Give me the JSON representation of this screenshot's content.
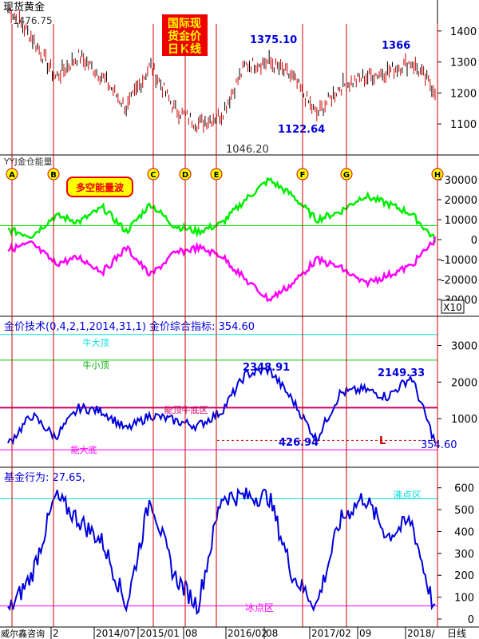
{
  "panel1": {
    "title": "现货黄金",
    "badge": [
      "国际现",
      "货金价",
      "日Ｋ线"
    ],
    "price_labels": {
      "high": "1476.75",
      "p2016": "1375.10",
      "p2018": "1366",
      "low1": "1122.64",
      "low2": "1046.20"
    }
  },
  "panel2": {
    "title": "YYJ金仓能量",
    "badge": "多空能量波",
    "markers": [
      "A",
      "B",
      "C",
      "D",
      "E",
      "F",
      "G",
      "H"
    ],
    "multiplier": "X10"
  },
  "panel3": {
    "title": "金价技术(0,4,2,1,2014,31,1) 金价综合指标: 354.60",
    "zones": {
      "top_big": "牛大顶",
      "top_small": "牛小顶",
      "energy": "能顶牛底区",
      "bottom_big": "能大底"
    },
    "labels": {
      "peak1": "2348.91",
      "peak2": "2149.33",
      "low": "426.94",
      "L": "L",
      "current": "354.60"
    }
  },
  "panel4": {
    "title": "基金行为: 27.65,",
    "zones": {
      "boil": "沸点区",
      "freeze": "冰点区"
    }
  },
  "footer": {
    "source": "威尔鑫咨询",
    "dates": [
      "2",
      "2014/07",
      "2015/01",
      "08",
      "2016/02",
      "08",
      "2017/02",
      "09",
      "2018/",
      "日线"
    ]
  },
  "colors": {
    "candle_up": "#cc0000",
    "candle_down": "#000000",
    "positive_energy": "#00ee00",
    "negative_energy": "#ff00ff",
    "indicator": "#0000dd",
    "threshold": "#cc0000",
    "badge_red": "#ee0000",
    "badge_yellow": "#ffff00",
    "badge_text": "#0000cc",
    "cyan_line": "#00dddd"
  },
  "chart_data": [
    {
      "type": "candlestick",
      "title": "现货黄金",
      "ylim": [
        1000,
        1500
      ],
      "yticks": [
        1100,
        1200,
        1300,
        1400
      ],
      "x": [
        2013.75,
        2014.0,
        2014.25,
        2014.5,
        2014.75,
        2015.0,
        2015.25,
        2015.5,
        2015.75,
        2016.0,
        2016.25,
        2016.5,
        2016.75,
        2017.0,
        2017.25,
        2017.5,
        2017.75,
        2018.0,
        2018.25
      ],
      "close": [
        1476,
        1380,
        1250,
        1320,
        1250,
        1150,
        1290,
        1150,
        1100,
        1130,
        1290,
        1300,
        1250,
        1130,
        1220,
        1250,
        1270,
        1300,
        1210
      ],
      "annotations": [
        "1476.75",
        "1375.10",
        "1366",
        "1122.64",
        "1046.20"
      ]
    },
    {
      "type": "line",
      "title": "YYJ金仓能量",
      "ylim": [
        -35000,
        35000
      ],
      "yticks": [
        -30000,
        -20000,
        -10000,
        0,
        10000,
        20000,
        30000
      ],
      "series": [
        {
          "values": [
            5000,
            2000,
            12000,
            9000,
            16000,
            4000,
            18000,
            7000,
            4000,
            8000,
            20000,
            30000,
            22000,
            10000,
            14000,
            22000,
            18000,
            13000,
            0
          ]
        },
        {
          "values": [
            -5000,
            -2000,
            -12000,
            -9000,
            -16000,
            -4000,
            -18000,
            -7000,
            -4000,
            -8000,
            -20000,
            -30000,
            -22000,
            -10000,
            -14000,
            -22000,
            -18000,
            -13000,
            0
          ]
        }
      ]
    },
    {
      "type": "line",
      "title": "金价技术(0,4,2,1,2014,31,1) 金价综合指标: 354.60",
      "ylim": [
        0,
        3600
      ],
      "yticks": [
        1000,
        2000,
        3000
      ],
      "series": [
        {
          "values": [
            300,
            1100,
            500,
            1300,
            1200,
            700,
            1100,
            950,
            800,
            1200,
            2200,
            2348.91,
            1500,
            426.94,
            1700,
            1800,
            1600,
            2149.33,
            354.6
          ]
        }
      ],
      "reference_lines": [
        3300,
        2600,
        1300,
        150
      ]
    },
    {
      "type": "line",
      "title": "基金行为: 27.65,",
      "ylim": [
        0,
        650
      ],
      "yticks": [
        0,
        100,
        200,
        300,
        400,
        500,
        600
      ],
      "series": [
        {
          "values": [
            30,
            200,
            560,
            450,
            350,
            60,
            560,
            200,
            60,
            560,
            560,
            560,
            200,
            60,
            450,
            560,
            380,
            450,
            27.65
          ]
        }
      ],
      "reference_lines": [
        550,
        60
      ]
    }
  ]
}
